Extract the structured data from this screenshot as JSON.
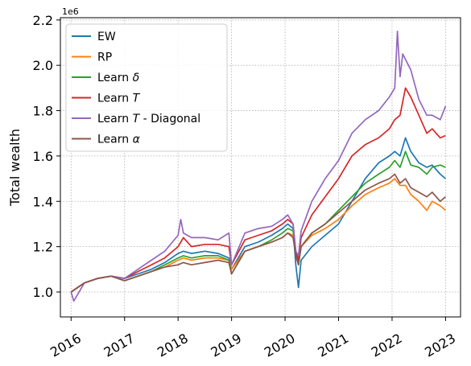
{
  "chart_data": {
    "type": "line",
    "ylabel": "Total wealth",
    "y_offset_label": "1e6",
    "x_tick_labels": [
      "2016",
      "2017",
      "2018",
      "2019",
      "2020",
      "2021",
      "2022",
      "2023"
    ],
    "y_tick_labels": [
      "1.0",
      "1.2",
      "1.4",
      "1.6",
      "1.8",
      "2.0",
      "2.2"
    ],
    "xlim": [
      2015.8,
      2023.28
    ],
    "ylim": [
      0.89,
      2.21
    ],
    "grid": true,
    "legend_position": "top-left",
    "series": [
      {
        "name": "EW",
        "label_parts": [
          "EW"
        ],
        "color": "#1f77b4",
        "x": [
          2016.0,
          2016.25,
          2016.5,
          2016.75,
          2017.0,
          2017.25,
          2017.5,
          2017.75,
          2018.0,
          2018.1,
          2018.25,
          2018.5,
          2018.75,
          2018.95,
          2019.0,
          2019.25,
          2019.5,
          2019.75,
          2019.95,
          2020.05,
          2020.15,
          2020.2,
          2020.25,
          2020.3,
          2020.5,
          2020.75,
          2021.0,
          2021.25,
          2021.5,
          2021.75,
          2021.95,
          2022.05,
          2022.15,
          2022.25,
          2022.35,
          2022.5,
          2022.65,
          2022.75,
          2022.9,
          2023.0
        ],
        "values": [
          1.0,
          1.04,
          1.06,
          1.07,
          1.06,
          1.08,
          1.1,
          1.13,
          1.17,
          1.18,
          1.17,
          1.18,
          1.17,
          1.15,
          1.1,
          1.2,
          1.22,
          1.25,
          1.28,
          1.3,
          1.28,
          1.12,
          1.02,
          1.14,
          1.2,
          1.25,
          1.3,
          1.4,
          1.5,
          1.57,
          1.6,
          1.62,
          1.6,
          1.68,
          1.62,
          1.57,
          1.55,
          1.56,
          1.52,
          1.5
        ]
      },
      {
        "name": "RP",
        "label_parts": [
          "RP"
        ],
        "color": "#ff7f0e",
        "x": [
          2016.0,
          2016.25,
          2016.5,
          2016.75,
          2017.0,
          2017.25,
          2017.5,
          2017.75,
          2018.0,
          2018.1,
          2018.25,
          2018.5,
          2018.75,
          2018.95,
          2019.0,
          2019.25,
          2019.5,
          2019.75,
          2019.95,
          2020.05,
          2020.15,
          2020.2,
          2020.25,
          2020.3,
          2020.5,
          2020.75,
          2021.0,
          2021.25,
          2021.5,
          2021.75,
          2021.95,
          2022.05,
          2022.15,
          2022.25,
          2022.35,
          2022.5,
          2022.65,
          2022.75,
          2022.9,
          2023.0
        ],
        "values": [
          1.0,
          1.04,
          1.06,
          1.07,
          1.05,
          1.07,
          1.09,
          1.11,
          1.14,
          1.15,
          1.14,
          1.15,
          1.15,
          1.14,
          1.1,
          1.18,
          1.2,
          1.22,
          1.24,
          1.26,
          1.25,
          1.18,
          1.13,
          1.2,
          1.25,
          1.28,
          1.32,
          1.38,
          1.43,
          1.46,
          1.48,
          1.5,
          1.47,
          1.47,
          1.43,
          1.4,
          1.36,
          1.4,
          1.38,
          1.36
        ]
      },
      {
        "name": "Learn δ",
        "label_parts": [
          "Learn ",
          "δ"
        ],
        "color": "#2ca02c",
        "x": [
          2016.0,
          2016.25,
          2016.5,
          2016.75,
          2017.0,
          2017.25,
          2017.5,
          2017.75,
          2018.0,
          2018.1,
          2018.25,
          2018.5,
          2018.75,
          2018.95,
          2019.0,
          2019.25,
          2019.5,
          2019.75,
          2019.95,
          2020.05,
          2020.15,
          2020.2,
          2020.25,
          2020.3,
          2020.5,
          2020.75,
          2021.0,
          2021.25,
          2021.5,
          2021.75,
          2021.95,
          2022.05,
          2022.15,
          2022.25,
          2022.35,
          2022.5,
          2022.65,
          2022.75,
          2022.9,
          2023.0
        ],
        "values": [
          1.0,
          1.04,
          1.06,
          1.07,
          1.05,
          1.07,
          1.09,
          1.12,
          1.15,
          1.16,
          1.15,
          1.16,
          1.16,
          1.14,
          1.08,
          1.18,
          1.2,
          1.23,
          1.26,
          1.28,
          1.27,
          1.18,
          1.12,
          1.2,
          1.26,
          1.3,
          1.36,
          1.42,
          1.48,
          1.52,
          1.55,
          1.58,
          1.55,
          1.62,
          1.56,
          1.55,
          1.52,
          1.55,
          1.56,
          1.55
        ]
      },
      {
        "name": "Learn T",
        "label_parts": [
          "Learn ",
          "T"
        ],
        "color": "#d62728",
        "x": [
          2016.0,
          2016.25,
          2016.5,
          2016.75,
          2017.0,
          2017.25,
          2017.5,
          2017.75,
          2018.0,
          2018.1,
          2018.25,
          2018.5,
          2018.75,
          2018.95,
          2019.0,
          2019.25,
          2019.5,
          2019.75,
          2019.95,
          2020.05,
          2020.15,
          2020.2,
          2020.25,
          2020.3,
          2020.5,
          2020.75,
          2021.0,
          2021.25,
          2021.5,
          2021.75,
          2021.95,
          2022.05,
          2022.15,
          2022.25,
          2022.35,
          2022.5,
          2022.65,
          2022.75,
          2022.9,
          2023.0
        ],
        "values": [
          1.0,
          1.04,
          1.06,
          1.07,
          1.06,
          1.09,
          1.12,
          1.15,
          1.2,
          1.24,
          1.2,
          1.21,
          1.21,
          1.2,
          1.12,
          1.23,
          1.25,
          1.27,
          1.3,
          1.32,
          1.3,
          1.18,
          1.14,
          1.24,
          1.34,
          1.42,
          1.5,
          1.6,
          1.65,
          1.68,
          1.72,
          1.76,
          1.78,
          1.9,
          1.86,
          1.78,
          1.7,
          1.72,
          1.68,
          1.69
        ]
      },
      {
        "name": "Learn T - Diagonal",
        "label_parts": [
          "Learn ",
          "T",
          " - Diagonal"
        ],
        "color": "#9467bd",
        "x": [
          2016.0,
          2016.05,
          2016.1,
          2016.25,
          2016.5,
          2016.75,
          2017.0,
          2017.25,
          2017.5,
          2017.75,
          2018.0,
          2018.05,
          2018.1,
          2018.25,
          2018.5,
          2018.75,
          2018.95,
          2019.0,
          2019.25,
          2019.5,
          2019.75,
          2019.95,
          2020.05,
          2020.15,
          2020.2,
          2020.25,
          2020.3,
          2020.5,
          2020.75,
          2021.0,
          2021.25,
          2021.5,
          2021.75,
          2021.95,
          2022.05,
          2022.1,
          2022.15,
          2022.2,
          2022.35,
          2022.5,
          2022.65,
          2022.75,
          2022.9,
          2023.0
        ],
        "values": [
          1.0,
          0.96,
          0.98,
          1.04,
          1.06,
          1.07,
          1.06,
          1.1,
          1.14,
          1.18,
          1.25,
          1.32,
          1.26,
          1.24,
          1.24,
          1.23,
          1.26,
          1.12,
          1.26,
          1.28,
          1.29,
          1.32,
          1.34,
          1.3,
          1.18,
          1.16,
          1.27,
          1.4,
          1.5,
          1.58,
          1.7,
          1.76,
          1.8,
          1.86,
          1.9,
          2.15,
          1.95,
          2.05,
          1.98,
          1.85,
          1.78,
          1.78,
          1.76,
          1.82
        ]
      },
      {
        "name": "Learn α",
        "label_parts": [
          "Learn ",
          "α"
        ],
        "color": "#8c564b",
        "x": [
          2016.0,
          2016.25,
          2016.5,
          2016.75,
          2017.0,
          2017.25,
          2017.5,
          2017.75,
          2018.0,
          2018.1,
          2018.25,
          2018.5,
          2018.75,
          2018.95,
          2019.0,
          2019.25,
          2019.5,
          2019.75,
          2019.95,
          2020.05,
          2020.15,
          2020.2,
          2020.25,
          2020.3,
          2020.5,
          2020.75,
          2021.0,
          2021.25,
          2021.5,
          2021.75,
          2021.95,
          2022.05,
          2022.15,
          2022.25,
          2022.35,
          2022.5,
          2022.65,
          2022.75,
          2022.9,
          2023.0
        ],
        "values": [
          1.0,
          1.04,
          1.06,
          1.07,
          1.05,
          1.07,
          1.09,
          1.11,
          1.12,
          1.13,
          1.12,
          1.13,
          1.14,
          1.13,
          1.08,
          1.18,
          1.2,
          1.22,
          1.24,
          1.26,
          1.24,
          1.16,
          1.12,
          1.2,
          1.26,
          1.3,
          1.35,
          1.4,
          1.45,
          1.48,
          1.5,
          1.52,
          1.48,
          1.5,
          1.46,
          1.44,
          1.42,
          1.44,
          1.4,
          1.42
        ]
      }
    ]
  }
}
